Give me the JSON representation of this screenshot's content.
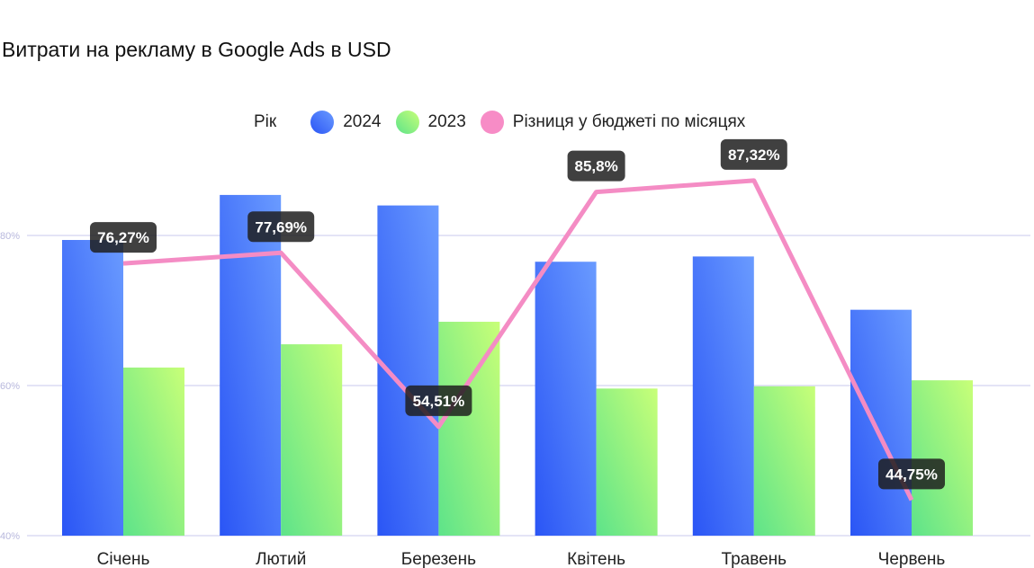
{
  "title": "Витрати на рекламу в Google Ads в USD",
  "legend": {
    "heading": "Рік",
    "items": [
      "2024",
      "2023",
      "Різниця у бюджеті по місяцях"
    ]
  },
  "chart_data": {
    "type": "bar",
    "title": "Витрати на рекламу в Google Ads в USD",
    "categories": [
      "Січень",
      "Лютий",
      "Березень",
      "Квітень",
      "Травень",
      "Червень"
    ],
    "ylim": [
      40,
      80
    ],
    "yticks": [
      "40%",
      "60%",
      "80%"
    ],
    "ytick_values": [
      40,
      60,
      80
    ],
    "legend_placement": "top-center",
    "grid": true,
    "series": [
      {
        "name": "2024",
        "type": "bar",
        "color": "#3f6cfa",
        "values": [
          79.4,
          85.4,
          84.0,
          76.5,
          77.2,
          70.1
        ]
      },
      {
        "name": "2023",
        "type": "bar",
        "color": "#8ef07c",
        "values": [
          62.4,
          65.5,
          68.5,
          59.6,
          59.9,
          60.7
        ]
      },
      {
        "name": "Різниця у бюджеті по місяцях",
        "type": "line",
        "color": "#f48cc4",
        "values": [
          76.27,
          77.69,
          54.51,
          85.8,
          87.32,
          44.75
        ],
        "labels": [
          "76,27%",
          "77,69%",
          "54,51%",
          "85,8%",
          "87,32%",
          "44,75%"
        ]
      }
    ]
  }
}
